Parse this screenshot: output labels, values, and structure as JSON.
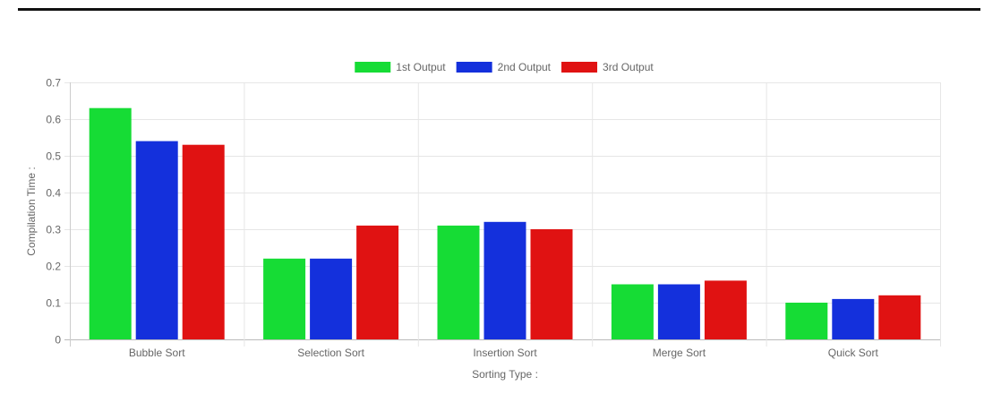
{
  "chart_data": {
    "type": "bar",
    "title": "",
    "xlabel": "Sorting Type :",
    "ylabel": "Compilation Time :",
    "ylim": [
      0,
      0.7
    ],
    "yticks": [
      "0",
      "0.1",
      "0.2",
      "0.3",
      "0.4",
      "0.5",
      "0.6",
      "0.7"
    ],
    "grid": true,
    "legend_position": "top-center",
    "categories": [
      "Bubble Sort",
      "Selection Sort",
      "Insertion Sort",
      "Merge Sort",
      "Quick Sort"
    ],
    "series": [
      {
        "name": "1st Output",
        "color": "#16dc35",
        "values": [
          0.63,
          0.22,
          0.31,
          0.15,
          0.1
        ]
      },
      {
        "name": "2nd Output",
        "color": "#1430dc",
        "values": [
          0.54,
          0.22,
          0.32,
          0.15,
          0.11
        ]
      },
      {
        "name": "3rd Output",
        "color": "#e01212",
        "values": [
          0.53,
          0.31,
          0.3,
          0.16,
          0.12
        ]
      }
    ]
  }
}
